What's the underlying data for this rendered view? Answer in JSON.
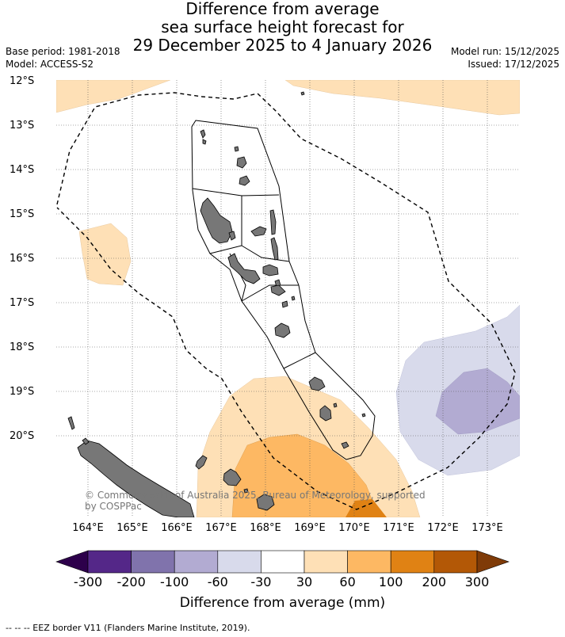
{
  "title": {
    "line1": "Difference from average",
    "line2": "sea surface height forecast for",
    "line3": "29 December 2025 to 4 January 2026"
  },
  "meta": {
    "base_period": "Base period: 1981-2018",
    "model": "Model: ACCESS-S2",
    "model_run": "Model run: 15/12/2025",
    "issued": "Issued: 17/12/2025"
  },
  "map": {
    "lat_labels": [
      "12°S",
      "13°S",
      "14°S",
      "15°S",
      "16°S",
      "17°S",
      "18°S",
      "19°S",
      "20°S"
    ],
    "lon_labels": [
      "164°E",
      "165°E",
      "166°E",
      "167°E",
      "168°E",
      "169°E",
      "170°E",
      "171°E",
      "172°E",
      "173°E"
    ],
    "copyright_line1": "© Commonwealth of Australia 2025, Bureau of Meteorology, supported",
    "copyright_line2": "by COSPPac"
  },
  "colorbar": {
    "ticks": [
      "-300",
      "-200",
      "-100",
      "-60",
      "-30",
      "30",
      "60",
      "100",
      "200",
      "300"
    ],
    "title": "Difference from average (mm)",
    "colors": {
      "below_-300": "#2d004b",
      "-300_-200": "#542788",
      "-200_-100": "#8073ac",
      "-100_-60": "#b2abd2",
      "-60_-30": "#d8daeb",
      "-30_30": "#ffffff",
      "30_60": "#fee0b6",
      "60_100": "#fdb863",
      "100_200": "#e08214",
      "200_300": "#b35806",
      "above_300": "#7f3b08"
    }
  },
  "footnote": "--  --  -- EEZ border V11 (Flanders Marine Institute, 2019)."
}
